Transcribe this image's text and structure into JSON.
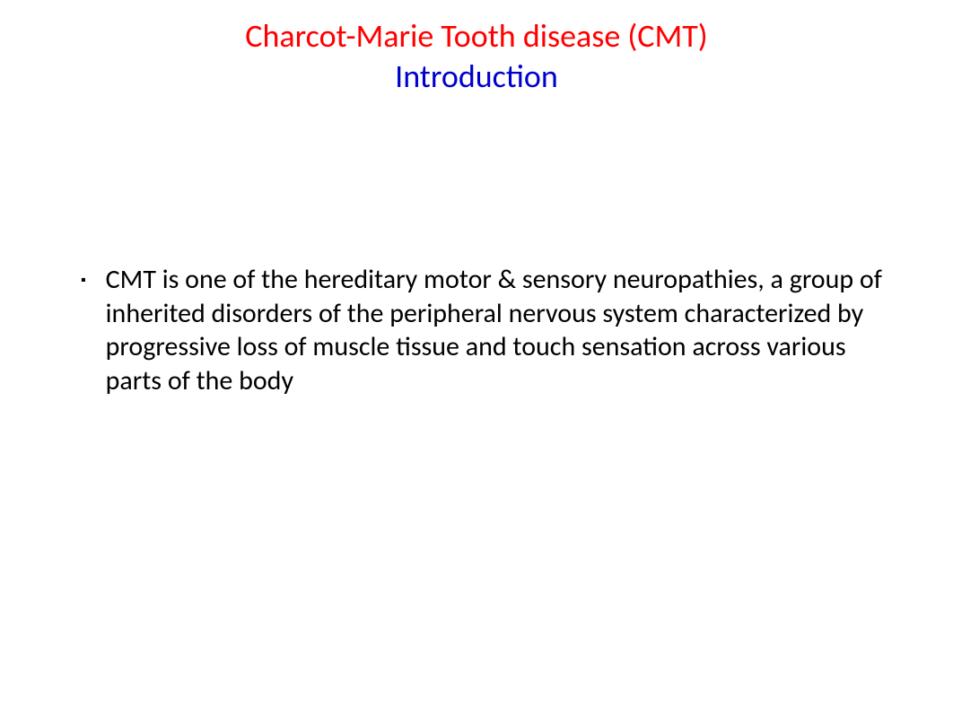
{
  "title": {
    "main": "Charcot-Marie Tooth disease (CMT)",
    "main_color": "#ff0000",
    "sub": "Introduction",
    "sub_color": "#0000cc",
    "fontsize": 36
  },
  "content": {
    "bullets": [
      {
        "marker": "▪",
        "text": "CMT is one of the hereditary motor & sensory neuropathies, a group of inherited disorders of the peripheral nervous system characterized by progressive loss of muscle tissue and touch sensation across various parts of the body"
      }
    ],
    "text_color": "#000000",
    "fontsize": 30
  },
  "background_color": "#ffffff"
}
